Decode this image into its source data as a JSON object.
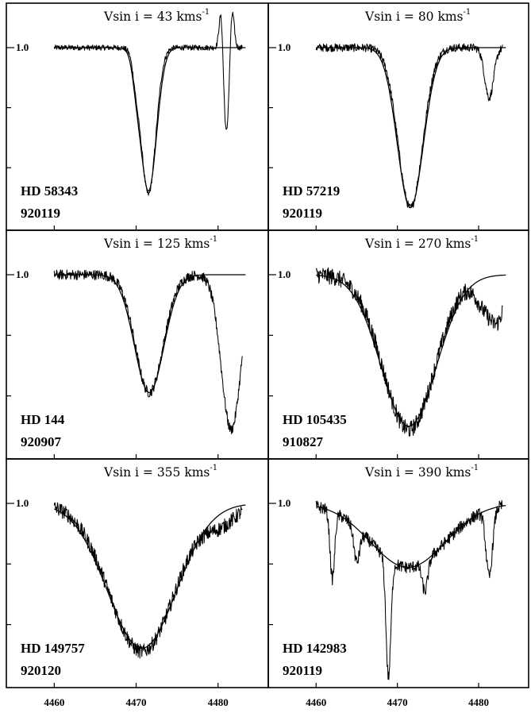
{
  "figure": {
    "x_axis_tick_labels": [
      "4460",
      "4470",
      "4480"
    ],
    "y_reference_label": "1.0"
  },
  "chart_data": [
    {
      "type": "line",
      "vsini_label": "Vsin i = 43 kms",
      "unit_exponent": "-1",
      "star": "HD 58343",
      "date": "920119",
      "xlim": [
        4459,
        4484
      ],
      "ylim": [
        0.0,
        1.0
      ],
      "lines": [
        {
          "center": 4471.5,
          "depth": 0.88,
          "width": 0.9,
          "shape": "gauss"
        },
        {
          "center": 4470.0,
          "depth": 0.1,
          "width": 0.4,
          "shape": "gauss"
        }
      ],
      "model_lines": [
        {
          "center": 4471.5,
          "depth": 0.86,
          "width": 1.0
        },
        {
          "center": 4470.0,
          "depth": 0.08,
          "width": 0.45
        }
      ],
      "obs_extra": [
        {
          "center": 4481.0,
          "depth": 0.52,
          "width": 0.35
        },
        {
          "center": 4480.4,
          "depth": -0.28,
          "width": 0.25
        },
        {
          "center": 4481.7,
          "depth": -0.26,
          "width": 0.25
        }
      ],
      "x_start": 4460,
      "x_end": 4483,
      "noise": 0.008
    },
    {
      "type": "line",
      "vsini_label": "Vsin i = 80 kms",
      "unit_exponent": "-1",
      "star": "HD 57219",
      "date": "920119",
      "xlim": [
        4459,
        4484
      ],
      "ylim": [
        0.0,
        1.0
      ],
      "lines": [
        {
          "center": 4471.6,
          "depth": 0.96,
          "width": 1.5,
          "shape": "gauss"
        }
      ],
      "model_lines": [
        {
          "center": 4471.6,
          "depth": 0.96,
          "width": 1.6
        }
      ],
      "obs_extra": [
        {
          "center": 4481.3,
          "depth": 0.3,
          "width": 0.55
        }
      ],
      "x_start": 4460,
      "x_end": 4483,
      "noise": 0.012
    },
    {
      "type": "line",
      "vsini_label": "Vsin i = 125 kms",
      "unit_exponent": "-1",
      "star": "HD 144",
      "date": "920907",
      "xlim": [
        4459,
        4484
      ],
      "ylim": [
        0.0,
        1.0
      ],
      "lines": [
        {
          "center": 4471.6,
          "depth": 0.7,
          "width": 1.7,
          "shape": "gauss"
        }
      ],
      "model_lines": [
        {
          "center": 4471.6,
          "depth": 0.7,
          "width": 1.8
        }
      ],
      "obs_extra": [
        {
          "center": 4481.6,
          "depth": 0.92,
          "width": 1.2
        }
      ],
      "x_start": 4460,
      "x_end": 4483,
      "noise": 0.015
    },
    {
      "type": "line",
      "vsini_label": "Vsin i = 270 kms",
      "unit_exponent": "-1",
      "star": "HD 105435",
      "date": "910827",
      "xlim": [
        4459,
        4484
      ],
      "ylim": [
        0.0,
        1.0
      ],
      "lines": [
        {
          "center": 4471.4,
          "depth": 0.92,
          "width": 3.2,
          "shape": "gauss"
        }
      ],
      "model_lines": [
        {
          "center": 4471.4,
          "depth": 0.9,
          "width": 3.4
        }
      ],
      "obs_extra": [
        {
          "center": 4481.0,
          "depth": 0.2,
          "width": 1.2
        },
        {
          "center": 4482.5,
          "depth": 0.18,
          "width": 0.8
        }
      ],
      "x_start": 4460,
      "x_end": 4483,
      "noise": 0.025
    },
    {
      "type": "line",
      "vsini_label": "Vsin i = 355 kms",
      "unit_exponent": "-1",
      "star": "HD 149757",
      "date": "920120",
      "xlim": [
        4459,
        4484
      ],
      "ylim": [
        0.0,
        1.0
      ],
      "lines": [
        {
          "center": 4470.7,
          "depth": 0.88,
          "width": 4.0,
          "shape": "gauss"
        }
      ],
      "model_lines": [
        {
          "center": 4470.7,
          "depth": 0.86,
          "width": 4.2
        }
      ],
      "obs_extra": [
        {
          "center": 4480.5,
          "depth": 0.1,
          "width": 1.8
        }
      ],
      "x_start": 4460,
      "x_end": 4483,
      "noise": 0.022
    },
    {
      "type": "line",
      "vsini_label": "Vsin i = 390 kms",
      "unit_exponent": "-1",
      "star": "HD 142983",
      "date": "920119",
      "xlim": [
        4459,
        4484
      ],
      "ylim": [
        0.0,
        1.0
      ],
      "lines": [
        {
          "center": 4471.3,
          "depth": 0.38,
          "width": 4.6,
          "shape": "gauss"
        }
      ],
      "model_lines": [
        {
          "center": 4471.3,
          "depth": 0.38,
          "width": 4.6
        }
      ],
      "obs_extra": [
        {
          "center": 4462.0,
          "depth": 0.4,
          "width": 0.28
        },
        {
          "center": 4465.0,
          "depth": 0.2,
          "width": 0.35
        },
        {
          "center": 4468.9,
          "depth": 0.7,
          "width": 0.3
        },
        {
          "center": 4473.4,
          "depth": 0.18,
          "width": 0.35
        },
        {
          "center": 4481.3,
          "depth": 0.4,
          "width": 0.4
        }
      ],
      "x_start": 4460,
      "x_end": 4483,
      "noise": 0.018
    }
  ]
}
